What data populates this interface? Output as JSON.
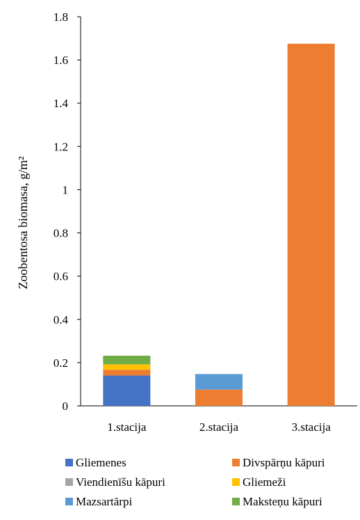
{
  "chart_data": {
    "type": "bar",
    "stacked": true,
    "categories": [
      "1.stacija",
      "2.stacija",
      "3.stacija"
    ],
    "series": [
      {
        "name": "Gliemenes",
        "color": "#4472C4",
        "values": [
          0.14,
          0,
          0
        ]
      },
      {
        "name": "Divspārņu kāpuri",
        "color": "#ED7D31",
        "values": [
          0.027,
          0.075,
          1.675
        ]
      },
      {
        "name": "Viendienīšu kāpuri",
        "color": "#A5A5A5",
        "values": [
          0,
          0,
          0
        ]
      },
      {
        "name": "Gliemeži",
        "color": "#FFC000",
        "values": [
          0.025,
          0,
          0
        ]
      },
      {
        "name": "Mazsartārpi",
        "color": "#5B9BD5",
        "values": [
          0,
          0.072,
          0
        ]
      },
      {
        "name": "Maksteņu kāpuri",
        "color": "#70AD47",
        "values": [
          0.04,
          0,
          0
        ]
      }
    ],
    "ylabel": "Zoobentosa biomasa, g/m²",
    "ylim": [
      0,
      1.8
    ],
    "yticks": [
      "0",
      "0.2",
      "0.4",
      "0.6",
      "0.8",
      "1",
      "1.2",
      "1.4",
      "1.6",
      "1.8"
    ],
    "grid": false,
    "legend_position": "bottom"
  }
}
